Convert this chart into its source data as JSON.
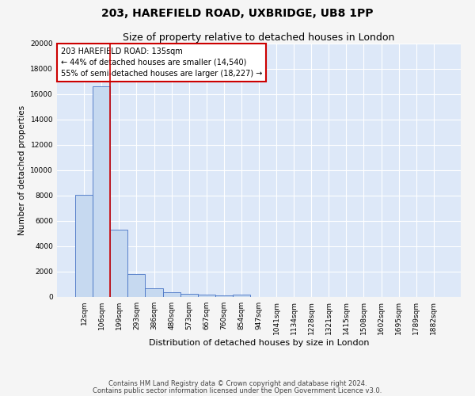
{
  "title1": "203, HAREFIELD ROAD, UXBRIDGE, UB8 1PP",
  "title2": "Size of property relative to detached houses in London",
  "xlabel": "Distribution of detached houses by size in London",
  "ylabel": "Number of detached properties",
  "bar_labels": [
    "12sqm",
    "106sqm",
    "199sqm",
    "293sqm",
    "386sqm",
    "480sqm",
    "573sqm",
    "667sqm",
    "760sqm",
    "854sqm",
    "947sqm",
    "1041sqm",
    "1134sqm",
    "1228sqm",
    "1321sqm",
    "1415sqm",
    "1508sqm",
    "1602sqm",
    "1695sqm",
    "1789sqm",
    "1882sqm"
  ],
  "bar_heights": [
    8050,
    16600,
    5300,
    1800,
    700,
    380,
    230,
    160,
    130,
    200,
    0,
    0,
    0,
    0,
    0,
    0,
    0,
    0,
    0,
    0,
    0
  ],
  "bar_color": "#c6d9f0",
  "bar_edge_color": "#4472c4",
  "red_line_index": 1,
  "ylim": [
    0,
    20000
  ],
  "yticks": [
    0,
    2000,
    4000,
    6000,
    8000,
    10000,
    12000,
    14000,
    16000,
    18000,
    20000
  ],
  "annotation_title": "203 HAREFIELD ROAD: 135sqm",
  "annotation_line1": "← 44% of detached houses are smaller (14,540)",
  "annotation_line2": "55% of semi-detached houses are larger (18,227) →",
  "annotation_box_color": "#ffffff",
  "annotation_box_edge": "#cc0000",
  "footer1": "Contains HM Land Registry data © Crown copyright and database right 2024.",
  "footer2": "Contains public sector information licensed under the Open Government Licence v3.0.",
  "bg_color": "#dde8f8",
  "fig_bg_color": "#f5f5f5",
  "grid_color": "#ffffff",
  "title1_fontsize": 10,
  "title2_fontsize": 9,
  "xlabel_fontsize": 8,
  "ylabel_fontsize": 7.5,
  "tick_fontsize": 6.5,
  "annotation_fontsize": 7,
  "footer_fontsize": 6
}
